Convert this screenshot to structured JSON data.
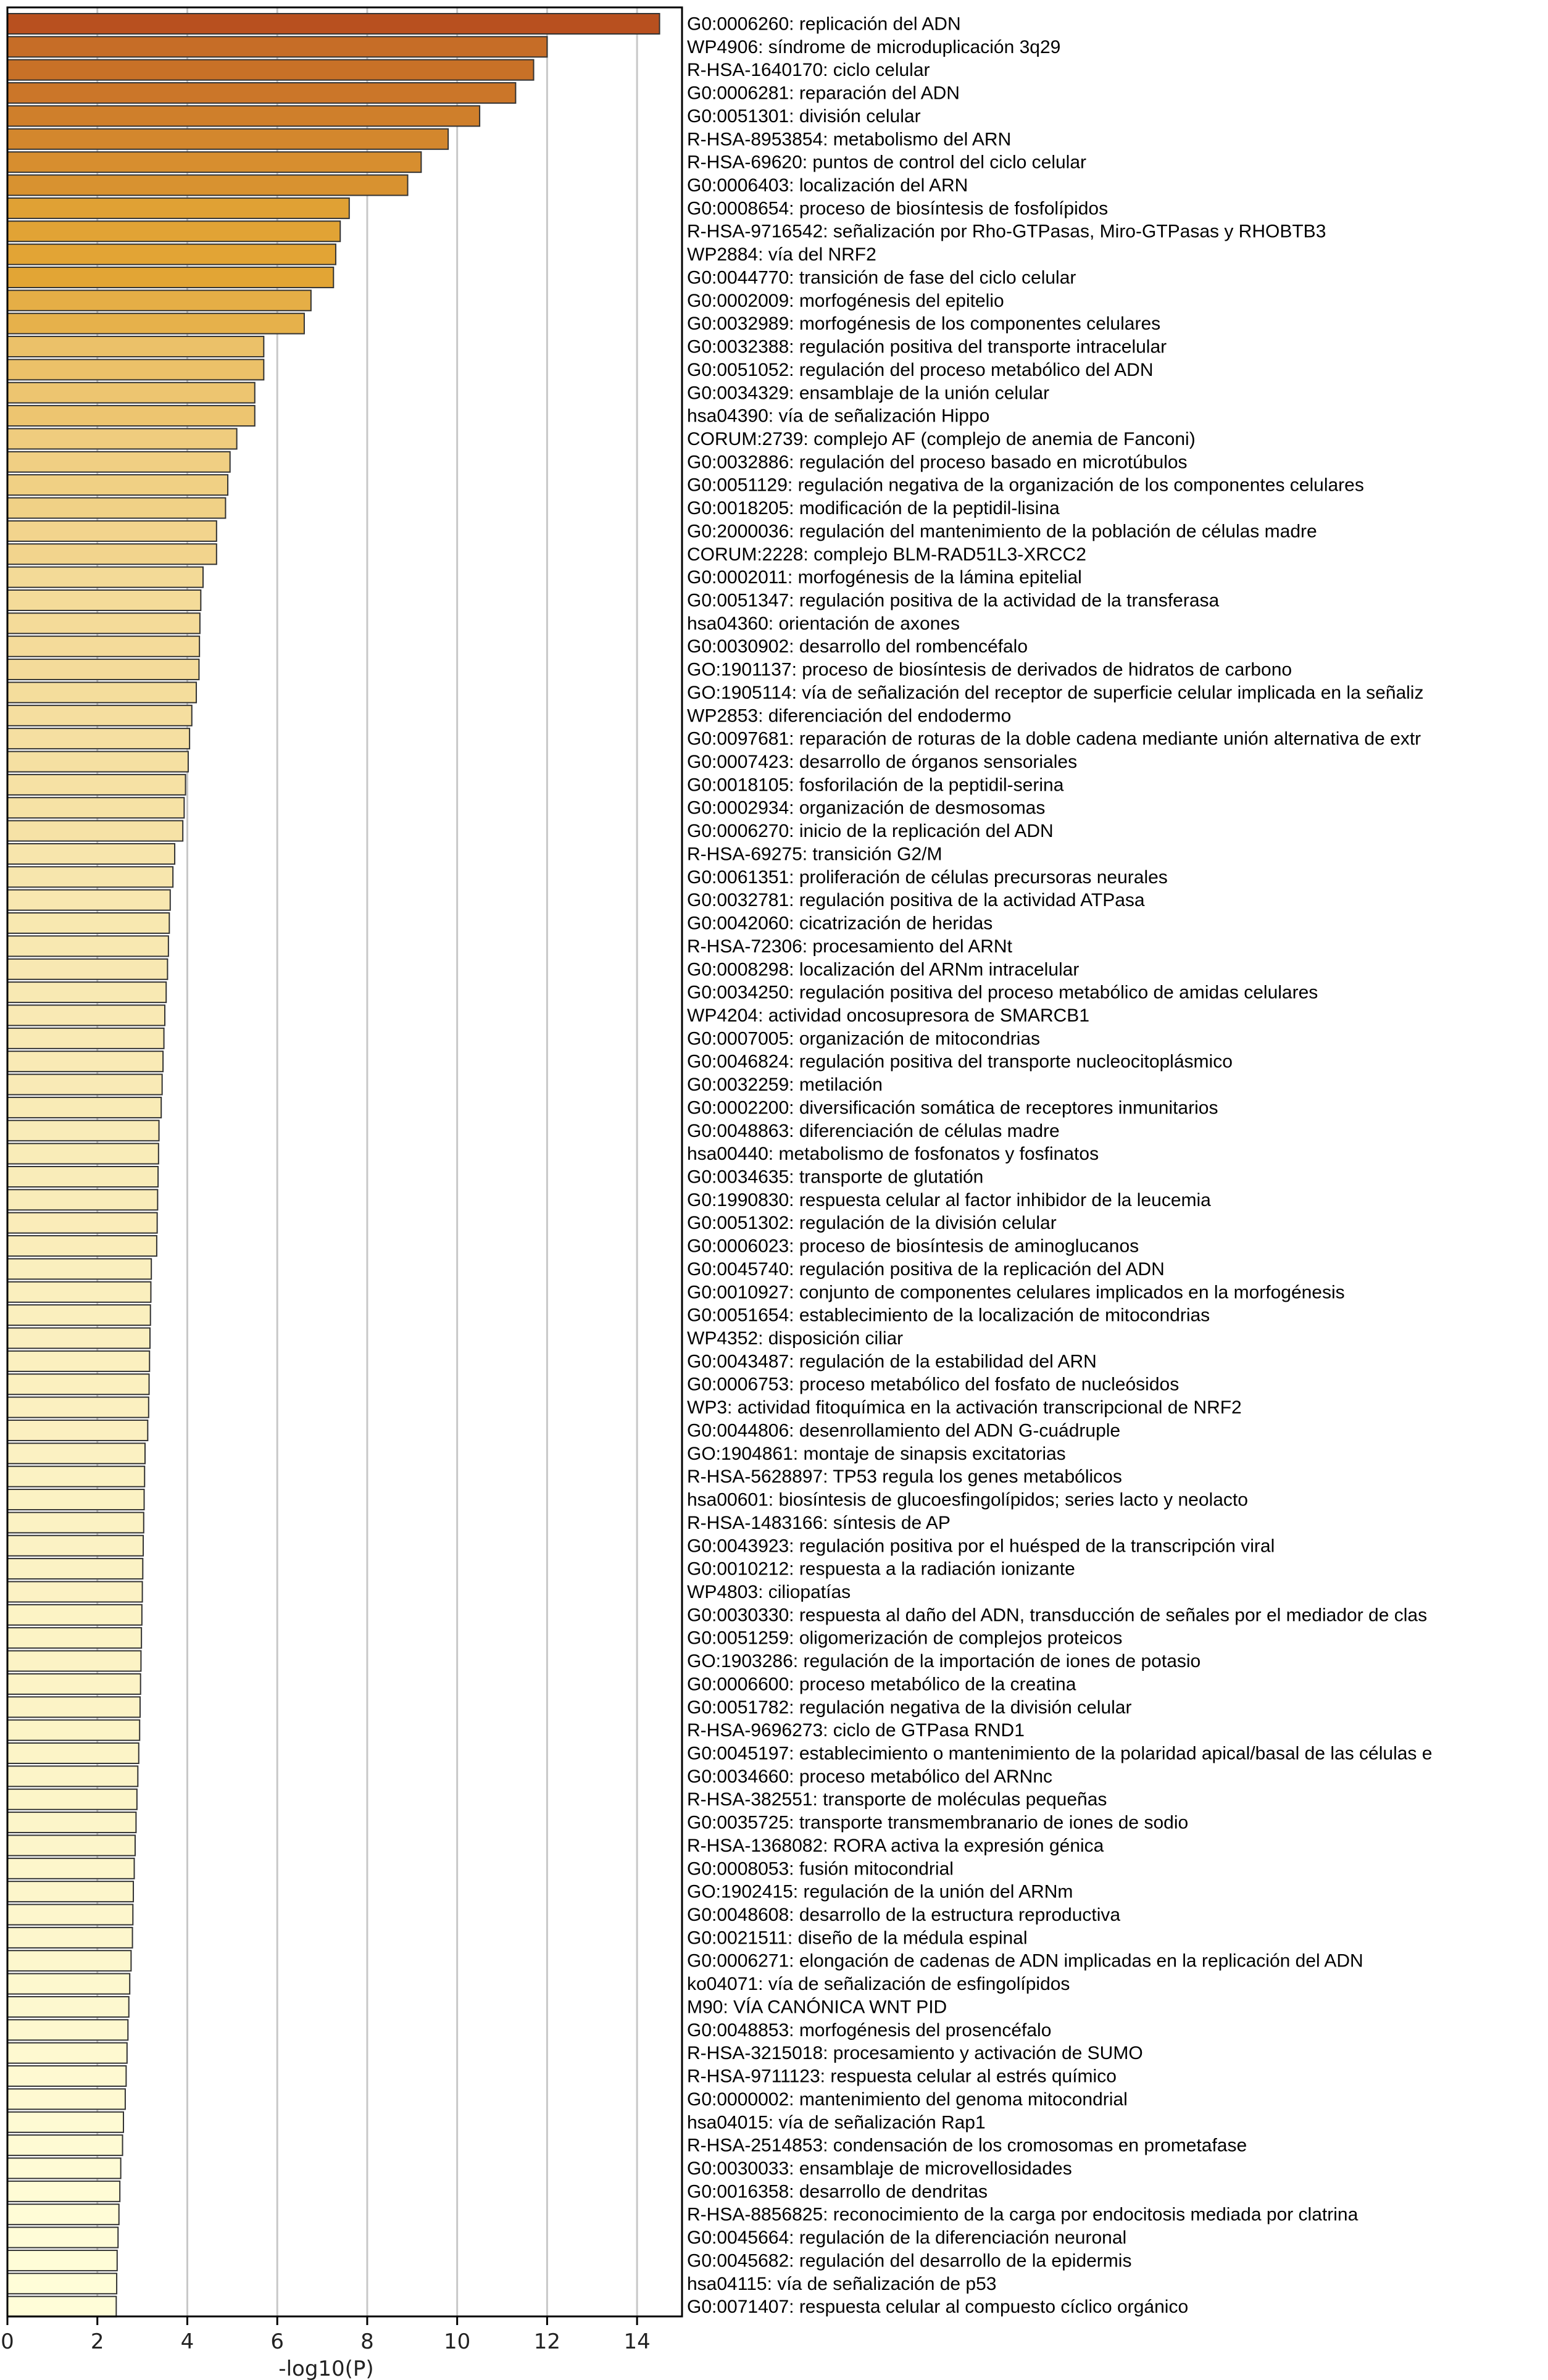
{
  "chart_data": {
    "type": "bar",
    "orientation": "horizontal",
    "xlabel": "-log10(P)",
    "xlim": [
      0,
      15
    ],
    "xticks": [
      0,
      2,
      4,
      6,
      8,
      10,
      12,
      14
    ],
    "grid": true,
    "colors": {
      "high": "#b8501f",
      "mid": "#e2a535",
      "low": "#fffdd8",
      "edge": "#333333",
      "grid": "#c8c8c8"
    },
    "categories": [
      "G0:0006260: replicación del ADN",
      "WP4906: síndrome de microduplicación 3q29",
      "R-HSA-1640170: ciclo celular",
      "G0:0006281: reparación del ADN",
      "G0:0051301: división celular",
      "R-HSA-8953854: metabolismo del ARN",
      "R-HSA-69620: puntos de control del ciclo celular",
      "G0:0006403: localización del ARN",
      "G0:0008654: proceso de biosíntesis de fosfolípidos",
      "R-HSA-9716542: señalización por Rho-GTPasas, Miro-GTPasas y RHOBTB3",
      "WP2884: vía del NRF2",
      "G0:0044770: transición de fase del ciclo celular",
      "G0:0002009: morfogénesis del epitelio",
      "G0:0032989: morfogénesis de los componentes celulares",
      "G0:0032388: regulación positiva del transporte intracelular",
      "G0:0051052: regulación del proceso metabólico del ADN",
      "G0:0034329: ensamblaje de la unión celular",
      "hsa04390: vía de señalización Hippo",
      "CORUM:2739: complejo AF (complejo de anemia de Fanconi)",
      "G0:0032886: regulación del proceso basado en microtúbulos",
      "G0:0051129: regulación negativa de la organización de los componentes celulares",
      "G0:0018205: modificación de la peptidil-lisina",
      "G0:2000036: regulación del mantenimiento de la población de células madre",
      "CORUM:2228: complejo BLM-RAD51L3-XRCC2",
      "G0:0002011: morfogénesis de la lámina epitelial",
      "G0:0051347: regulación positiva de la actividad de la transferasa",
      "hsa04360: orientación de axones",
      "G0:0030902: desarrollo del rombencéfalo",
      "GO:1901137: proceso de biosíntesis de derivados de hidratos de carbono",
      "GO:1905114: vía de señalización del receptor de superficie celular implicada en la señaliz",
      "WP2853: diferenciación del endodermo",
      "G0:0097681: reparación de roturas de la doble cadena mediante unión alternativa de extr",
      "G0:0007423: desarrollo de órganos sensoriales",
      "G0:0018105: fosforilación de la peptidil-serina",
      "G0:0002934: organización de desmosomas",
      "G0:0006270: inicio de la replicación del ADN",
      "R-HSA-69275: transición G2/M",
      "G0:0061351: proliferación de células precursoras neurales",
      "G0:0032781: regulación positiva de la actividad ATPasa",
      "G0:0042060: cicatrización de heridas",
      "R-HSA-72306: procesamiento del ARNt",
      "G0:0008298: localización del ARNm intracelular",
      "G0:0034250: regulación positiva del proceso metabólico de amidas celulares",
      "WP4204: actividad oncosupresora de SMARCB1",
      "G0:0007005: organización de mitocondrias",
      "G0:0046824: regulación positiva del transporte nucleocitoplásmico",
      "G0:0032259: metilación",
      "G0:0002200: diversificación somática de receptores inmunitarios",
      "G0:0048863: diferenciación de células madre",
      "hsa00440: metabolismo de fosfonatos y fosfinatos",
      "G0:0034635: transporte de glutatión",
      "G0:1990830: respuesta celular al factor inhibidor de la leucemia",
      "G0:0051302: regulación de la división celular",
      "G0:0006023: proceso de biosíntesis de aminoglucanos",
      "G0:0045740: regulación positiva de la replicación del ADN",
      "G0:0010927: conjunto de componentes celulares implicados en la morfogénesis",
      "G0:0051654: establecimiento de la localización de mitocondrias",
      "WP4352: disposición ciliar",
      "G0:0043487: regulación de la estabilidad del ARN",
      "G0:0006753: proceso metabólico del fosfato de nucleósidos",
      "WP3: actividad fitoquímica en la activación transcripcional de NRF2",
      "G0:0044806: desenrollamiento del ADN G-cuádruple",
      "GO:1904861: montaje de sinapsis excitatorias",
      "R-HSA-5628897: TP53 regula los genes metabólicos",
      "hsa00601: biosíntesis de glucoesfingolípidos; series lacto y neolacto",
      "R-HSA-1483166: síntesis de AP",
      "G0:0043923: regulación positiva por el huésped de la transcripción viral",
      "G0:0010212: respuesta a la radiación ionizante",
      "WP4803: ciliopatías",
      "G0:0030330: respuesta al daño del ADN, transducción de señales por el mediador de clas",
      "G0:0051259: oligomerización de complejos proteicos",
      "GO:1903286: regulación de la importación de iones de potasio",
      "G0:0006600: proceso metabólico de la creatina",
      "G0:0051782: regulación negativa de la división celular",
      "R-HSA-9696273: ciclo de GTPasa RND1",
      "G0:0045197: establecimiento o mantenimiento de la polaridad apical/basal de las células e",
      "G0:0034660: proceso metabólico del ARNnc",
      "R-HSA-382551: transporte de moléculas pequeñas",
      "G0:0035725: transporte transmembranario de iones de sodio",
      "R-HSA-1368082: RORA activa la expresión génica",
      "G0:0008053: fusión mitocondrial",
      "GO:1902415: regulación de la unión del ARNm",
      "G0:0048608: desarrollo de la estructura reproductiva",
      "G0:0021511: diseño de la médula espinal",
      "G0:0006271: elongación de cadenas de ADN implicadas en la replicación del ADN",
      "ko04071: vía de señalización de esfingolípidos",
      "M90: VÍA CANÓNICA WNT PID",
      "G0:0048853: morfogénesis del prosencéfalo",
      "R-HSA-3215018: procesamiento y activación de SUMO",
      "R-HSA-9711123: respuesta celular al estrés químico",
      "G0:0000002: mantenimiento del genoma mitocondrial",
      "hsa04015: vía de señalización Rap1",
      "R-HSA-2514853: condensación de los cromosomas en prometafase",
      "G0:0030033: ensamblaje de microvellosidades",
      "G0:0016358: desarrollo de dendritas",
      "R-HSA-8856825: reconocimiento de la carga por endocitosis mediada por clatrina",
      "G0:0045664: regulación de la diferenciación neuronal",
      "G0:0045682: regulación del desarrollo de la epidermis",
      "hsa04115: vía de señalización de p53",
      "G0:0071407: respuesta celular al compuesto cíclico orgánico"
    ],
    "values": [
      14.5,
      12.0,
      11.7,
      11.3,
      10.5,
      9.8,
      9.2,
      8.9,
      7.6,
      7.4,
      7.3,
      7.25,
      6.75,
      6.6,
      5.7,
      5.7,
      5.5,
      5.5,
      5.1,
      4.95,
      4.9,
      4.85,
      4.65,
      4.65,
      4.35,
      4.3,
      4.28,
      4.27,
      4.26,
      4.2,
      4.1,
      4.05,
      4.02,
      3.96,
      3.93,
      3.9,
      3.72,
      3.68,
      3.62,
      3.6,
      3.58,
      3.56,
      3.53,
      3.5,
      3.48,
      3.46,
      3.44,
      3.42,
      3.37,
      3.36,
      3.35,
      3.34,
      3.33,
      3.32,
      3.2,
      3.19,
      3.18,
      3.17,
      3.16,
      3.15,
      3.14,
      3.12,
      3.06,
      3.05,
      3.04,
      3.03,
      3.02,
      3.01,
      3.0,
      2.99,
      2.98,
      2.97,
      2.96,
      2.95,
      2.94,
      2.92,
      2.9,
      2.88,
      2.86,
      2.84,
      2.82,
      2.8,
      2.79,
      2.78,
      2.75,
      2.72,
      2.7,
      2.68,
      2.66,
      2.64,
      2.62,
      2.58,
      2.56,
      2.52,
      2.5,
      2.48,
      2.46,
      2.44,
      2.43,
      2.42
    ]
  }
}
